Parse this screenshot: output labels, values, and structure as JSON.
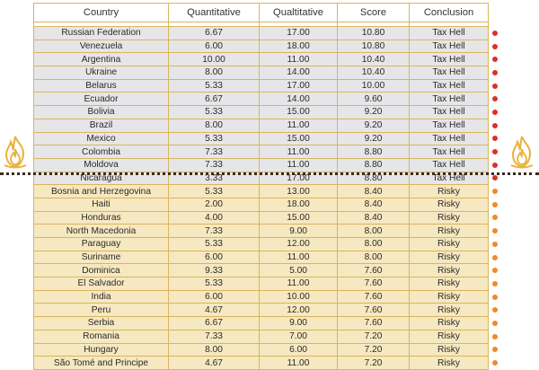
{
  "table": {
    "headers": [
      "Country",
      "Quantitative",
      "Qualtitative",
      "Score",
      "Conclusion"
    ],
    "rows": [
      {
        "country": "Russian Federation",
        "quant": "6.67",
        "qual": "17.00",
        "score": "10.80",
        "conclusion": "Tax Hell",
        "group": "hell"
      },
      {
        "country": "Venezuela",
        "quant": "6.00",
        "qual": "18.00",
        "score": "10.80",
        "conclusion": "Tax Hell",
        "group": "hell"
      },
      {
        "country": "Argentina",
        "quant": "10.00",
        "qual": "11.00",
        "score": "10.40",
        "conclusion": "Tax Hell",
        "group": "hell"
      },
      {
        "country": "Ukraine",
        "quant": "8.00",
        "qual": "14.00",
        "score": "10.40",
        "conclusion": "Tax Hell",
        "group": "hell"
      },
      {
        "country": "Belarus",
        "quant": "5.33",
        "qual": "17.00",
        "score": "10.00",
        "conclusion": "Tax Hell",
        "group": "hell"
      },
      {
        "country": "Ecuador",
        "quant": "6.67",
        "qual": "14.00",
        "score": "9.60",
        "conclusion": "Tax Hell",
        "group": "hell"
      },
      {
        "country": "Bolivia",
        "quant": "5.33",
        "qual": "15.00",
        "score": "9.20",
        "conclusion": "Tax Hell",
        "group": "hell"
      },
      {
        "country": "Brazil",
        "quant": "8.00",
        "qual": "11.00",
        "score": "9.20",
        "conclusion": "Tax Hell",
        "group": "hell"
      },
      {
        "country": "Mexico",
        "quant": "5.33",
        "qual": "15.00",
        "score": "9.20",
        "conclusion": "Tax Hell",
        "group": "hell"
      },
      {
        "country": "Colombia",
        "quant": "7.33",
        "qual": "11.00",
        "score": "8.80",
        "conclusion": "Tax Hell",
        "group": "hell"
      },
      {
        "country": "Moldova",
        "quant": "7.33",
        "qual": "11.00",
        "score": "8.80",
        "conclusion": "Tax Hell",
        "group": "hell"
      },
      {
        "country": "Nicaragua",
        "quant": "3.33",
        "qual": "17.00",
        "score": "8.80",
        "conclusion": "Tax Hell",
        "group": "hell"
      },
      {
        "country": "Bosnia and Herzegovina",
        "quant": "5.33",
        "qual": "13.00",
        "score": "8.40",
        "conclusion": "Risky",
        "group": "risky"
      },
      {
        "country": "Haiti",
        "quant": "2.00",
        "qual": "18.00",
        "score": "8.40",
        "conclusion": "Risky",
        "group": "risky"
      },
      {
        "country": "Honduras",
        "quant": "4.00",
        "qual": "15.00",
        "score": "8.40",
        "conclusion": "Risky",
        "group": "risky"
      },
      {
        "country": "North Macedonia",
        "quant": "7.33",
        "qual": "9.00",
        "score": "8.00",
        "conclusion": "Risky",
        "group": "risky"
      },
      {
        "country": "Paraguay",
        "quant": "5.33",
        "qual": "12.00",
        "score": "8.00",
        "conclusion": "Risky",
        "group": "risky"
      },
      {
        "country": "Suriname",
        "quant": "6.00",
        "qual": "11.00",
        "score": "8.00",
        "conclusion": "Risky",
        "group": "risky"
      },
      {
        "country": "Dominica",
        "quant": "9.33",
        "qual": "5.00",
        "score": "7.60",
        "conclusion": "Risky",
        "group": "risky"
      },
      {
        "country": "El Salvador",
        "quant": "5.33",
        "qual": "11.00",
        "score": "7.60",
        "conclusion": "Risky",
        "group": "risky"
      },
      {
        "country": "India",
        "quant": "6.00",
        "qual": "10.00",
        "score": "7.60",
        "conclusion": "Risky",
        "group": "risky"
      },
      {
        "country": "Peru",
        "quant": "4.67",
        "qual": "12.00",
        "score": "7.60",
        "conclusion": "Risky",
        "group": "risky"
      },
      {
        "country": "Serbia",
        "quant": "6.67",
        "qual": "9.00",
        "score": "7.60",
        "conclusion": "Risky",
        "group": "risky"
      },
      {
        "country": "Romania",
        "quant": "7.33",
        "qual": "7.00",
        "score": "7.20",
        "conclusion": "Risky",
        "group": "risky"
      },
      {
        "country": "Hungary",
        "quant": "8.00",
        "qual": "6.00",
        "score": "7.20",
        "conclusion": "Risky",
        "group": "risky"
      },
      {
        "country": "São Tomé and Principe",
        "quant": "4.67",
        "qual": "11.00",
        "score": "7.20",
        "conclusion": "Risky",
        "group": "risky"
      }
    ]
  },
  "colors": {
    "hell_dot": "#d9312b",
    "risky_dot": "#ef8a2a",
    "hell_row": "#e6e6e8",
    "risky_row": "#f6e8c0",
    "border": "#d9b55f",
    "flame": "#e8b23a"
  },
  "icons": {
    "left": "flame-icon",
    "right": "flame-icon"
  }
}
